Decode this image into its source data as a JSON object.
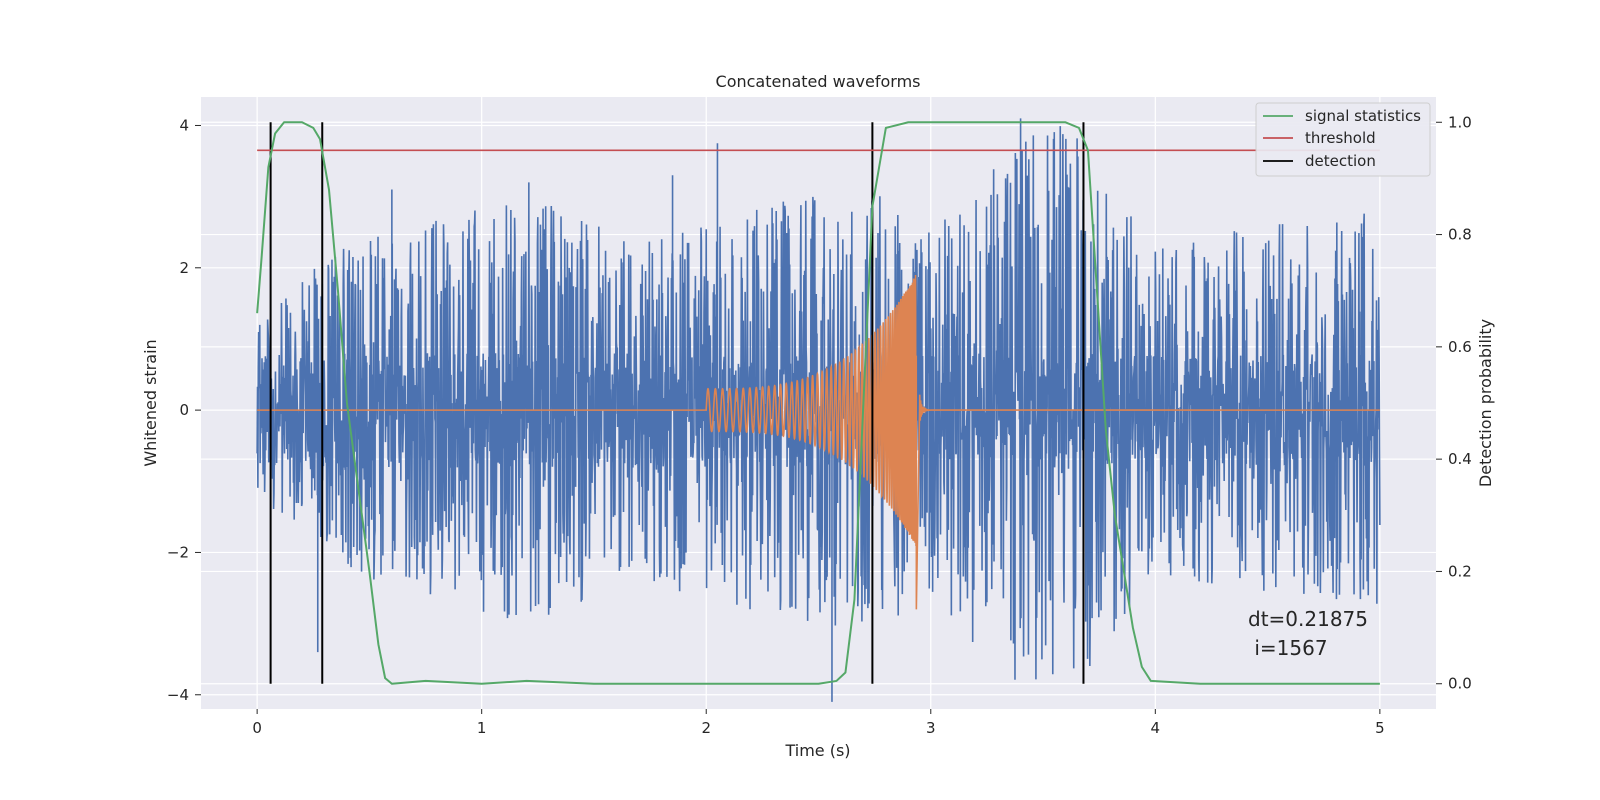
{
  "chart_data": {
    "type": "line",
    "title": "Concatenated waveforms",
    "xlabel": "Time (s)",
    "ylabel": "Whitened strain",
    "y2label": "Detection probability",
    "xlim": [
      -0.25,
      5.25
    ],
    "ylim": [
      -4.2,
      4.4
    ],
    "y2lim": [
      -0.045,
      1.045
    ],
    "x_ticks": [
      0,
      1,
      2,
      3,
      4,
      5
    ],
    "y_ticks": [
      -4,
      -2,
      0,
      2,
      4
    ],
    "y2_ticks": [
      0.0,
      0.2,
      0.4,
      0.6,
      0.8,
      1.0
    ],
    "x_tick_labels": [
      "0",
      "1",
      "2",
      "3",
      "4",
      "5"
    ],
    "y_tick_labels": [
      "−4",
      "−2",
      "0",
      "2",
      "4"
    ],
    "y2_tick_labels": [
      "0.0",
      "0.2",
      "0.4",
      "0.6",
      "0.8",
      "1.0"
    ],
    "grid": true,
    "legend_position": "top-right",
    "legend": [
      "signal statistics",
      "threshold",
      "detection"
    ],
    "annotation": [
      "dt=0.21875",
      " i=1567"
    ],
    "series": [
      {
        "name": "",
        "axis": "left",
        "kind": "noise",
        "color": "#4c72b0",
        "x_range": [
          0,
          5
        ],
        "envelope_points": [
          [
            0.0,
            1.2
          ],
          [
            0.3,
            2.2
          ],
          [
            0.6,
            2.5
          ],
          [
            1.2,
            3.0
          ],
          [
            1.7,
            2.4
          ],
          [
            2.4,
            3.0
          ],
          [
            2.75,
            3.1
          ],
          [
            3.0,
            2.6
          ],
          [
            3.42,
            4.1
          ],
          [
            3.62,
            4.0
          ],
          [
            4.0,
            2.3
          ],
          [
            4.4,
            2.6
          ],
          [
            5.0,
            2.8
          ]
        ],
        "spikes": [
          [
            0.27,
            -3.4
          ],
          [
            0.6,
            3.1
          ],
          [
            1.21,
            3.2
          ],
          [
            1.85,
            3.3
          ],
          [
            2.05,
            3.75
          ],
          [
            2.56,
            -4.1
          ],
          [
            3.4,
            4.1
          ],
          [
            3.25,
            -2.7
          ]
        ]
      },
      {
        "name": "",
        "axis": "left",
        "kind": "chirp",
        "color": "#dd8452",
        "x": [
          2.0,
          2.95
        ],
        "amplitude_start": 0.3,
        "amplitude_peak": 2.0,
        "amplitude_min": -2.8
      },
      {
        "name": "signal statistics",
        "axis": "right",
        "color": "#55a868",
        "x": [
          0.0,
          0.02,
          0.05,
          0.08,
          0.12,
          0.2,
          0.25,
          0.28,
          0.32,
          0.36,
          0.4,
          0.45,
          0.5,
          0.54,
          0.57,
          0.6,
          0.75,
          1.0,
          1.2,
          1.5,
          2.0,
          2.5,
          2.58,
          2.62,
          2.66,
          2.7,
          2.74,
          2.8,
          2.9,
          3.2,
          3.6,
          3.66,
          3.7,
          3.74,
          3.78,
          3.82,
          3.86,
          3.9,
          3.94,
          3.98,
          4.2,
          4.6,
          5.0
        ],
        "y": [
          0.66,
          0.76,
          0.92,
          0.98,
          1.0,
          1.0,
          0.99,
          0.97,
          0.88,
          0.7,
          0.5,
          0.35,
          0.2,
          0.07,
          0.01,
          0.0,
          0.005,
          0.0,
          0.005,
          0.0,
          0.0,
          0.0,
          0.005,
          0.02,
          0.15,
          0.5,
          0.85,
          0.99,
          1.0,
          1.0,
          1.0,
          0.99,
          0.95,
          0.7,
          0.45,
          0.3,
          0.2,
          0.1,
          0.03,
          0.005,
          0.0,
          0.0,
          0.0
        ]
      },
      {
        "name": "threshold",
        "axis": "right",
        "color": "#c44e52",
        "x": [
          0.0,
          5.0
        ],
        "y": [
          0.95,
          0.95
        ]
      },
      {
        "name": "detection",
        "axis": "right",
        "color": "#000000",
        "x": [
          0.06,
          0.29,
          2.74,
          3.68
        ],
        "y_range": [
          0.0,
          1.0
        ]
      }
    ]
  }
}
